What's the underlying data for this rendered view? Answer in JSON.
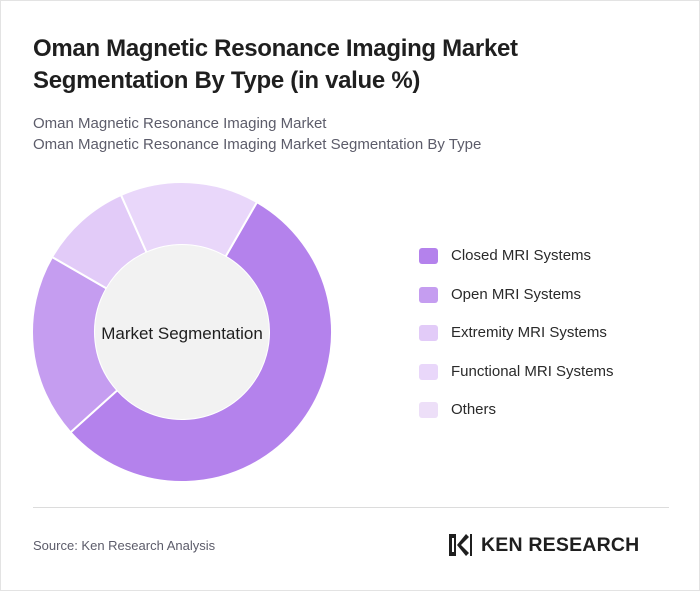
{
  "header": {
    "title": "Oman Magnetic Resonance Imaging Market Segmentation By Type (in value %)",
    "subtitle_line1": "Oman Magnetic Resonance Imaging Market",
    "subtitle_line2": "Oman Magnetic Resonance Imaging Market Segmentation By Type"
  },
  "chart_data": {
    "type": "pie",
    "variant": "donut",
    "center_label": "Market Segmentation",
    "categories": [
      "Closed MRI Systems",
      "Open MRI Systems",
      "Extremity MRI Systems",
      "Functional MRI Systems",
      "Others"
    ],
    "values": [
      55,
      20,
      10,
      15,
      0
    ],
    "colors": [
      "#b482ec",
      "#c59df0",
      "#e2cbf8",
      "#e9d7fa",
      "#eddff8"
    ],
    "legend_position": "right"
  },
  "footer": {
    "source": "Source: Ken Research Analysis",
    "logo_text": "KEN RESEARCH"
  }
}
